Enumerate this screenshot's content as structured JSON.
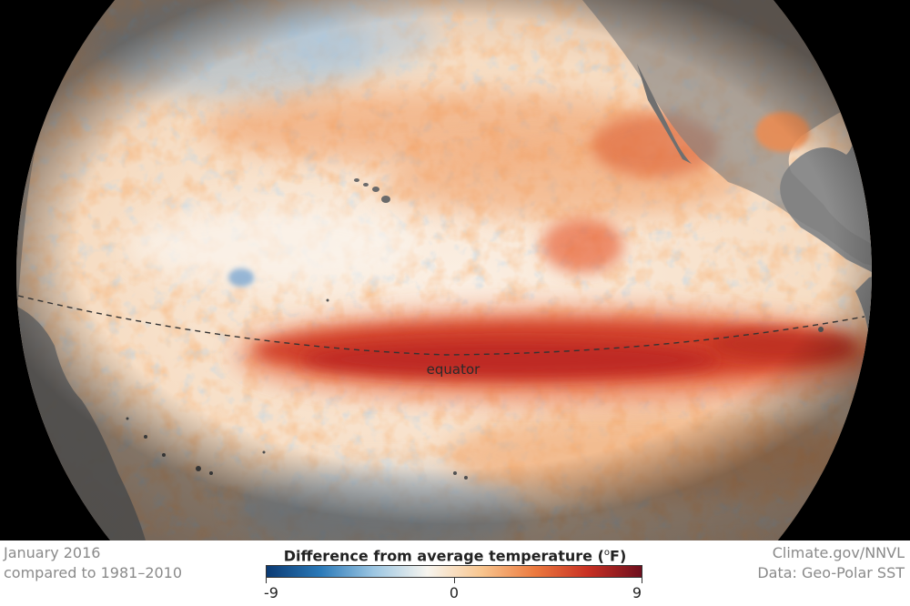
{
  "map": {
    "equator_label": "equator"
  },
  "footer": {
    "date": "January 2016",
    "comparison": "compared to 1981–2010",
    "credit": "Climate.gov/NNVL",
    "source": "Data: Geo-Polar SST"
  },
  "legend": {
    "title": "Difference from average temperature",
    "unit_symbol": "o",
    "unit_letter": "F",
    "min_label": "-9",
    "mid_label": "0",
    "max_label": "9",
    "colors": [
      "#0b3a73",
      "#2a79b8",
      "#9cc6e2",
      "#f7f5ef",
      "#f8c690",
      "#ec7a3f",
      "#c83023",
      "#6e0f1e"
    ]
  }
}
